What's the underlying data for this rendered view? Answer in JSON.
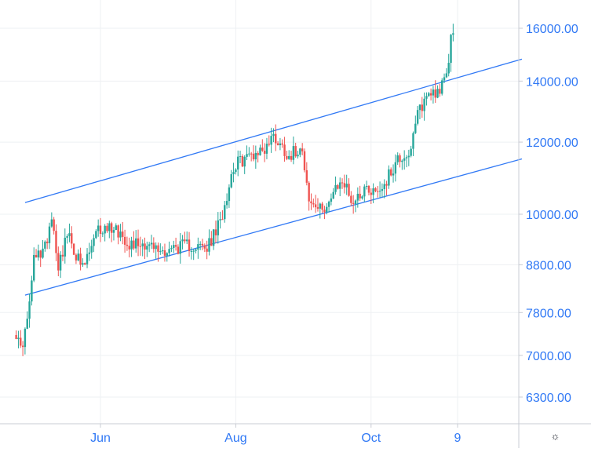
{
  "colors": {
    "up": "#26a69a",
    "down": "#ef5350",
    "trendline": "#3179f5",
    "axis_text": "#3179f5",
    "grid": "#eef0f3"
  },
  "settings_icon": "gear-icon",
  "settings_glyph": "☼",
  "chart_data": {
    "type": "candlestick",
    "title": "",
    "y_scale": "log",
    "ylim": [
      5900,
      17800
    ],
    "y_ticks": [
      6300,
      7000,
      7800,
      8800,
      10000,
      12000,
      14000,
      16000
    ],
    "y_tick_labels": [
      "6300.00",
      "7000.00",
      "7800.00",
      "8800.00",
      "10000.00",
      "12000.00",
      "14000.00",
      "16000.00"
    ],
    "x_ticks": [
      "Jun",
      "Aug",
      "Oct",
      "9"
    ],
    "grid": true,
    "legend": "none",
    "ohlc_control_points": [
      {
        "date": "2020-04-23",
        "close": 7500
      },
      {
        "date": "2020-04-26",
        "close": 7100
      },
      {
        "date": "2020-04-29",
        "close": 7600
      },
      {
        "date": "2020-05-02",
        "close": 8900
      },
      {
        "date": "2020-05-07",
        "close": 9200
      },
      {
        "date": "2020-05-10",
        "close": 10000
      },
      {
        "date": "2020-05-13",
        "close": 8800
      },
      {
        "date": "2020-05-17",
        "close": 9500
      },
      {
        "date": "2020-05-24",
        "close": 8700
      },
      {
        "date": "2020-05-31",
        "close": 9600
      },
      {
        "date": "2020-06-07",
        "close": 9700
      },
      {
        "date": "2020-06-14",
        "close": 9300
      },
      {
        "date": "2020-06-21",
        "close": 9300
      },
      {
        "date": "2020-06-28",
        "close": 9100
      },
      {
        "date": "2020-07-05",
        "close": 9200
      },
      {
        "date": "2020-07-12",
        "close": 9250
      },
      {
        "date": "2020-07-19",
        "close": 9150
      },
      {
        "date": "2020-07-25",
        "close": 9800
      },
      {
        "date": "2020-07-31",
        "close": 11300
      },
      {
        "date": "2020-08-07",
        "close": 11600
      },
      {
        "date": "2020-08-14",
        "close": 11800
      },
      {
        "date": "2020-08-18",
        "close": 12200
      },
      {
        "date": "2020-08-25",
        "close": 11600
      },
      {
        "date": "2020-08-31",
        "close": 11900
      },
      {
        "date": "2020-09-03",
        "close": 10300
      },
      {
        "date": "2020-09-08",
        "close": 10100
      },
      {
        "date": "2020-09-13",
        "close": 10400
      },
      {
        "date": "2020-09-18",
        "close": 10900
      },
      {
        "date": "2020-09-23",
        "close": 10300
      },
      {
        "date": "2020-09-28",
        "close": 10700
      },
      {
        "date": "2020-10-04",
        "close": 10600
      },
      {
        "date": "2020-10-08",
        "close": 10900
      },
      {
        "date": "2020-10-13",
        "close": 11500
      },
      {
        "date": "2020-10-19",
        "close": 11700
      },
      {
        "date": "2020-10-22",
        "close": 12900
      },
      {
        "date": "2020-10-27",
        "close": 13600
      },
      {
        "date": "2020-11-01",
        "close": 13700
      },
      {
        "date": "2020-11-04",
        "close": 14100
      },
      {
        "date": "2020-11-06",
        "close": 15600
      },
      {
        "date": "2020-11-07",
        "close": 15800
      }
    ],
    "trendlines": [
      {
        "name": "",
        "points": [
          {
            "date": "2020-04-28",
            "value": 10300
          },
          {
            "date": "2020-12-08",
            "value": 14800
          }
        ]
      },
      {
        "name": "",
        "points": [
          {
            "date": "2020-04-28",
            "value": 8150
          },
          {
            "date": "2020-12-08",
            "value": 11500
          }
        ]
      }
    ]
  }
}
